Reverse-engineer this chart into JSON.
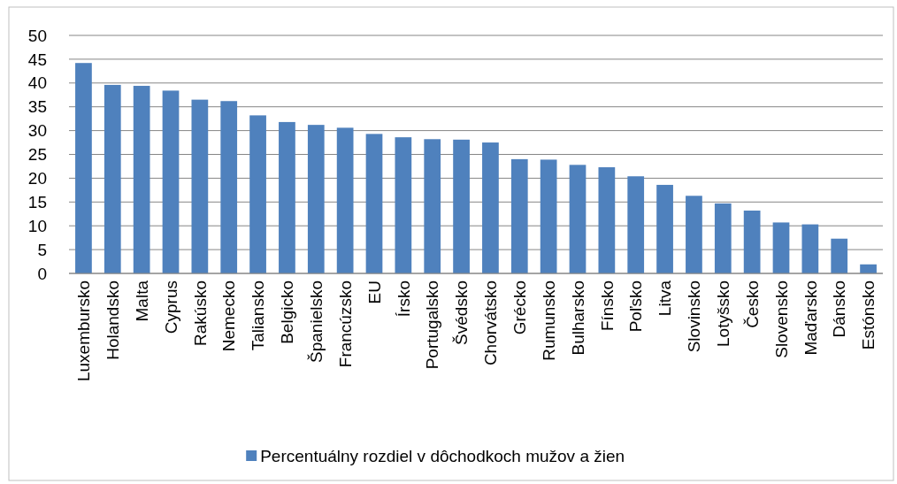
{
  "chart_data": {
    "type": "bar",
    "categories": [
      "Luxembursko",
      "Holandsko",
      "Malta",
      "Cyprus",
      "Rakúsko",
      "Nemecko",
      "Taliansko",
      "Belgicko",
      "Španielsko",
      "Francúzsko",
      "EU",
      "Írsko",
      "Portugalsko",
      "Švédsko",
      "Chorvátsko",
      "Grécko",
      "Rumunsko",
      "Bulharsko",
      "Fínsko",
      "Poľsko",
      "Litva",
      "Slovinsko",
      "Lotyšsko",
      "Česko",
      "Slovensko",
      "Maďarsko",
      "Dánsko",
      "Estónsko"
    ],
    "series": [
      {
        "name": "Percentuálny rozdiel v dôchodkoch mužov a žien",
        "color": "#4f81bd",
        "values": [
          44.2,
          39.6,
          39.4,
          38.4,
          36.5,
          36.2,
          33.2,
          31.8,
          31.2,
          30.6,
          29.3,
          28.6,
          28.2,
          28.1,
          27.5,
          24.0,
          23.9,
          22.8,
          22.3,
          20.4,
          18.6,
          16.3,
          14.7,
          13.2,
          10.7,
          10.3,
          7.3,
          1.9
        ]
      }
    ],
    "ylim": [
      0,
      50
    ],
    "yticks": [
      0,
      5,
      10,
      15,
      20,
      25,
      30,
      35,
      40,
      45,
      50
    ],
    "grid": "y",
    "legend": "bottom"
  }
}
